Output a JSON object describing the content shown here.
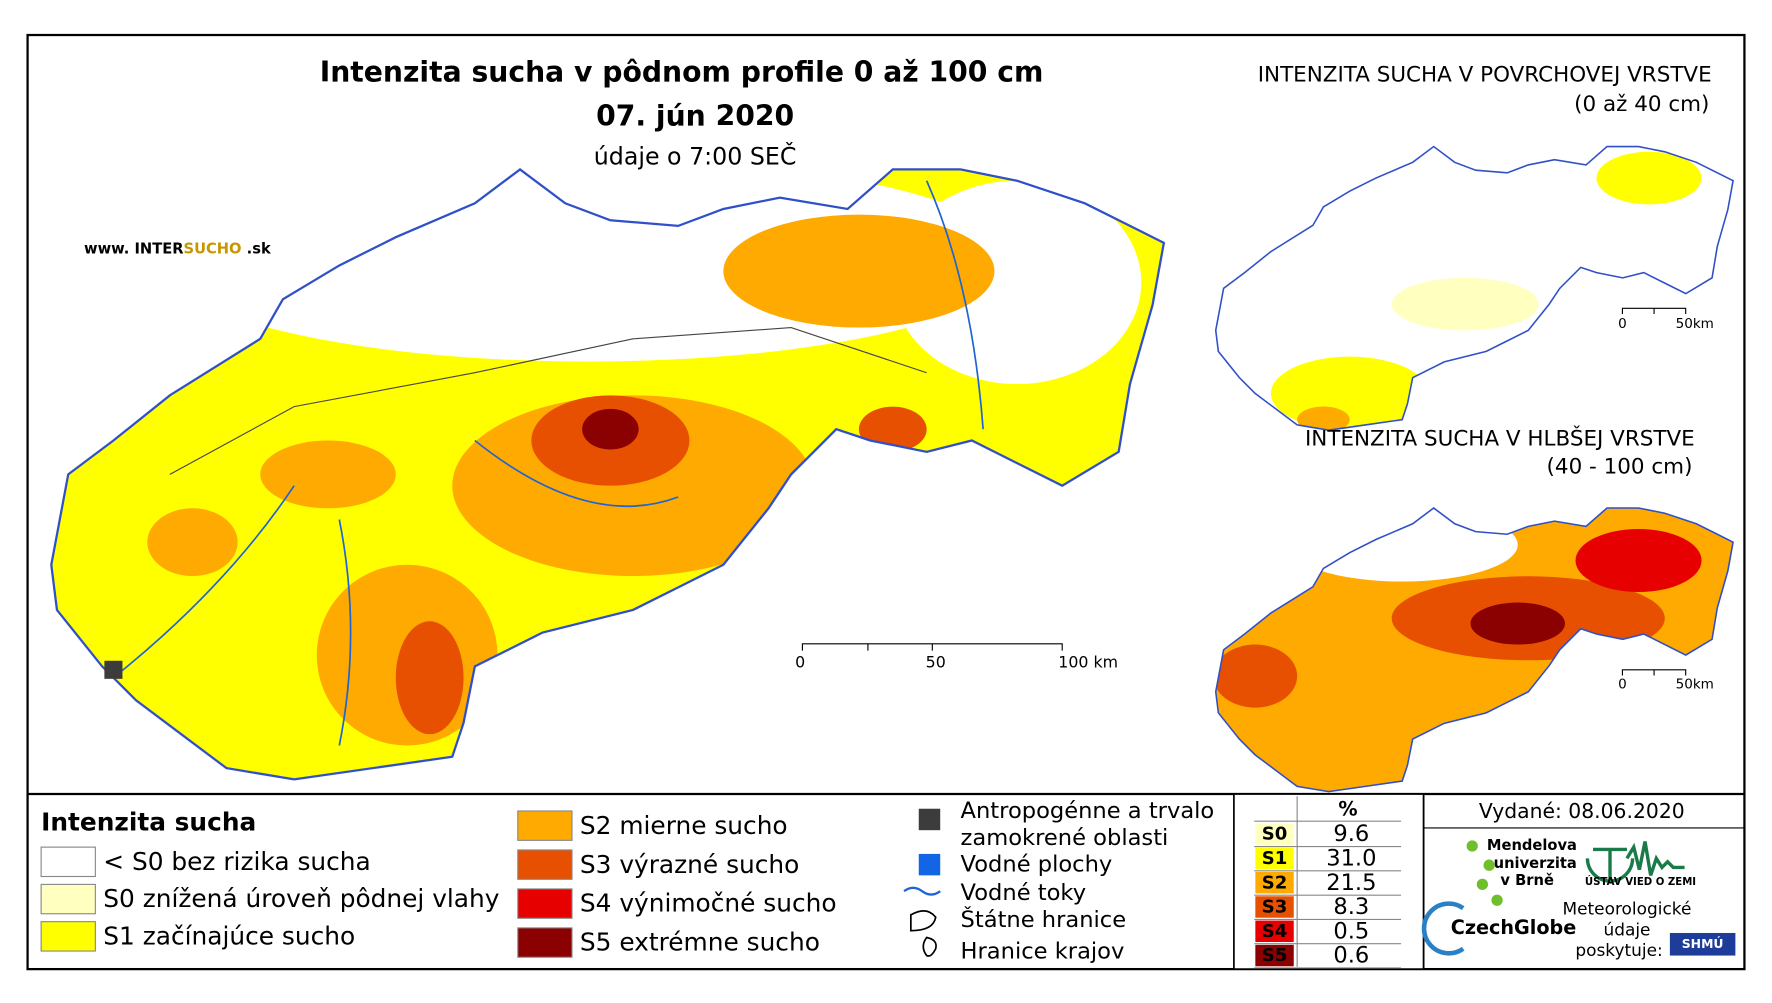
{
  "main_map": {
    "title": "Intenzita sucha v pôdnom profile 0 až 100 cm",
    "date": "07. jún 2020",
    "time_note": "údaje o 7:00 SEČ",
    "website": [
      "www. INTER",
      "SUCHO",
      " .sk"
    ],
    "scale_labels": [
      "0",
      "50",
      "100 km"
    ]
  },
  "inset_surface": {
    "title": "INTENZITA SUCHA V POVRCHOVEJ VRSTVE",
    "subtitle": "(0 až 40 cm)",
    "scale_labels": [
      "0",
      "50km"
    ]
  },
  "inset_deep": {
    "title": "INTENZITA SUCHA V HLBŠEJ VRSTVE",
    "subtitle": "(40 - 100 cm)",
    "scale_labels": [
      "0",
      "50km"
    ]
  },
  "legend": {
    "title": "Intenzita sucha",
    "classes": [
      {
        "label": "< S0 bez rizika sucha",
        "color": "#ffffff"
      },
      {
        "label": "S0 znížená úroveň pôdnej vlahy",
        "color": "#ffffc0"
      },
      {
        "label": "S1 začínajúce sucho",
        "color": "#ffff00"
      },
      {
        "label": "S2 mierne sucho",
        "color": "#ffaa00"
      },
      {
        "label": "S3 výrazné sucho",
        "color": "#e65000"
      },
      {
        "label": "S4 výnimočné sucho",
        "color": "#e60000"
      },
      {
        "label": "S5 extrémne sucho",
        "color": "#8b0000"
      }
    ],
    "other": [
      "Antropogénne a trvalo zamokrené oblasti",
      "Vodné plochy",
      "Vodné toky",
      "Štátne hranice",
      "Hranice krajov"
    ]
  },
  "stats_table": {
    "header": "%",
    "rows": [
      [
        "S0",
        "9.6"
      ],
      [
        "S1",
        "31.0"
      ],
      [
        "S2",
        "21.5"
      ],
      [
        "S3",
        "8.3"
      ],
      [
        "S4",
        "0.5"
      ],
      [
        "S5",
        "0.6"
      ]
    ],
    "row_colors": [
      "#ffffc0",
      "#ffff00",
      "#ffaa00",
      "#e65000",
      "#e60000",
      "#8b0000"
    ]
  },
  "credits": {
    "issued": "Vydané: 08.06.2020",
    "mendel": [
      "Mendelova",
      "univerzita",
      "v Brně"
    ],
    "czechglobe": "CzechGlobe",
    "ustav": "ÚSTAV VIED O ZEMI",
    "meteo": [
      "Meteorologické",
      "údaje",
      "poskytuje:"
    ],
    "shmu": "SHMÚ"
  }
}
